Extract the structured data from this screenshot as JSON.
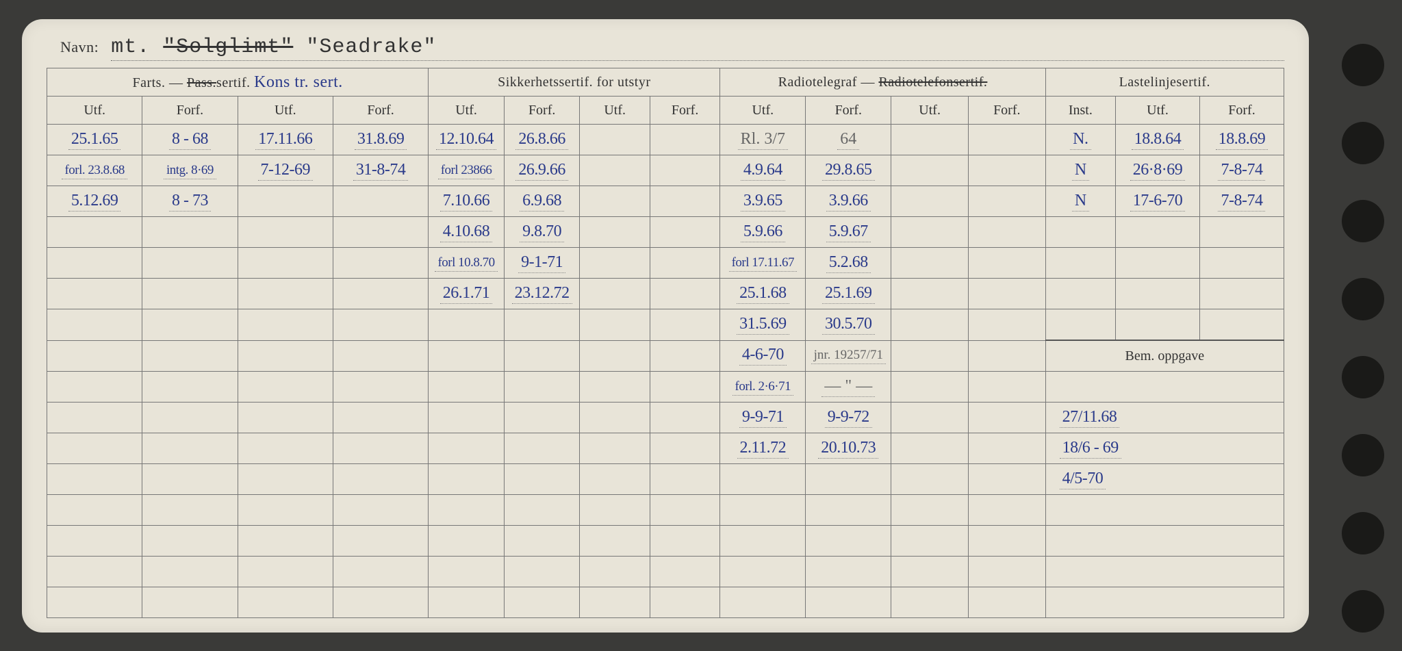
{
  "navn": {
    "label": "Navn:",
    "prefix": "mt.",
    "struck": "\"Solglimt\"",
    "value": "\"Seadrake\""
  },
  "groups": {
    "g1": "Farts. —",
    "g1_struck": "Pass.",
    "g1_suffix": "sertif.",
    "g1_annot": "Kons tr. sert.",
    "g2": "Sikkerhetssertif. for utstyr",
    "g3a": "Radiotelegraf —",
    "g3_struck": "Radiotelefonsertif.",
    "g4": "Lastelinjesertif.",
    "bem": "Bem. oppgave"
  },
  "subheaders": {
    "utf": "Utf.",
    "forf": "Forf.",
    "inst": "Inst."
  },
  "rows": [
    {
      "c1": "25.1.65",
      "c2": "8 - 68",
      "c3": "17.11.66",
      "c4": "31.8.69",
      "c5": "12.10.64",
      "c6": "26.8.66",
      "c7": "",
      "c8": "",
      "c9": "Rl. 3/7",
      "c10": "64",
      "c11": "",
      "c12": "",
      "c13": "N.",
      "c14": "18.8.64",
      "c15": "18.8.69",
      "pencil9": true,
      "pencil10": true
    },
    {
      "c1": "forl. 23.8.68",
      "c2": "intg. 8·69",
      "c3": "7-12-69",
      "c4": "31-8-74",
      "c5": "forl 23866",
      "c6": "26.9.66",
      "c7": "",
      "c8": "",
      "c9": "4.9.64",
      "c10": "29.8.65",
      "c11": "",
      "c12": "",
      "c13": "N",
      "c14": "26·8·69",
      "c15": "7-8-74"
    },
    {
      "c1": "5.12.69",
      "c2": "8 - 73",
      "c3": "",
      "c4": "",
      "c5": "7.10.66",
      "c6": "6.9.68",
      "c7": "",
      "c8": "",
      "c9": "3.9.65",
      "c10": "3.9.66",
      "c11": "",
      "c12": "",
      "c13": "N",
      "c14": "17-6-70",
      "c15": "7-8-74"
    },
    {
      "c1": "",
      "c2": "",
      "c3": "",
      "c4": "",
      "c5": "4.10.68",
      "c6": "9.8.70",
      "c7": "",
      "c8": "",
      "c9": "5.9.66",
      "c10": "5.9.67",
      "c11": "",
      "c12": "",
      "c13": "",
      "c14": "",
      "c15": ""
    },
    {
      "c1": "",
      "c2": "",
      "c3": "",
      "c4": "",
      "c5": "forl 10.8.70",
      "c6": "9-1-71",
      "c7": "",
      "c8": "",
      "c9": "forl 17.11.67",
      "c10": "5.2.68",
      "c11": "",
      "c12": "",
      "c13": "",
      "c14": "",
      "c15": ""
    },
    {
      "c1": "",
      "c2": "",
      "c3": "",
      "c4": "",
      "c5": "26.1.71",
      "c6": "23.12.72",
      "c7": "",
      "c8": "",
      "c9": "25.1.68",
      "c10": "25.1.69",
      "c11": "",
      "c12": "",
      "c13": "",
      "c14": "",
      "c15": ""
    },
    {
      "c1": "",
      "c2": "",
      "c3": "",
      "c4": "",
      "c5": "",
      "c6": "",
      "c7": "",
      "c8": "",
      "c9": "31.5.69",
      "c10": "30.5.70",
      "c11": "",
      "c12": "",
      "c13": "",
      "c14": "",
      "c15": ""
    },
    {
      "c1": "",
      "c2": "",
      "c3": "",
      "c4": "",
      "c5": "",
      "c6": "",
      "c7": "",
      "c8": "",
      "c9": "4-6-70",
      "c10": "jnr. 19257/71",
      "c11": "",
      "c12": "",
      "c13": "",
      "c14": "",
      "c15": "",
      "pencil10": true,
      "bem_start": true
    },
    {
      "c1": "",
      "c2": "",
      "c3": "",
      "c4": "",
      "c5": "",
      "c6": "",
      "c7": "",
      "c8": "",
      "c9": "forl. 2·6·71",
      "c10": "— \" —",
      "c11": "",
      "c12": "",
      "c13": "",
      "c14": "",
      "c15": "",
      "pencil10": true
    },
    {
      "c1": "",
      "c2": "",
      "c3": "",
      "c4": "",
      "c5": "",
      "c6": "",
      "c7": "",
      "c8": "",
      "c9": "9-9-71",
      "c10": "9-9-72",
      "c11": "",
      "c12": "",
      "bem": "27/11.68"
    },
    {
      "c1": "",
      "c2": "",
      "c3": "",
      "c4": "",
      "c5": "",
      "c6": "",
      "c7": "",
      "c8": "",
      "c9": "2.11.72",
      "c10": "20.10.73",
      "c11": "",
      "c12": "",
      "bem": "18/6 - 69"
    },
    {
      "c1": "",
      "c2": "",
      "c3": "",
      "c4": "",
      "c5": "",
      "c6": "",
      "c7": "",
      "c8": "",
      "c9": "",
      "c10": "",
      "c11": "",
      "c12": "",
      "bem": "4/5-70"
    },
    {
      "c1": "",
      "c2": "",
      "c3": "",
      "c4": "",
      "c5": "",
      "c6": "",
      "c7": "",
      "c8": "",
      "c9": "",
      "c10": "",
      "c11": "",
      "c12": "",
      "bem": ""
    },
    {
      "c1": "",
      "c2": "",
      "c3": "",
      "c4": "",
      "c5": "",
      "c6": "",
      "c7": "",
      "c8": "",
      "c9": "",
      "c10": "",
      "c11": "",
      "c12": "",
      "bem": ""
    },
    {
      "c1": "",
      "c2": "",
      "c3": "",
      "c4": "",
      "c5": "",
      "c6": "",
      "c7": "",
      "c8": "",
      "c9": "",
      "c10": "",
      "c11": "",
      "c12": "",
      "bem": ""
    },
    {
      "c1": "",
      "c2": "",
      "c3": "",
      "c4": "",
      "c5": "",
      "c6": "",
      "c7": "",
      "c8": "",
      "c9": "",
      "c10": "",
      "c11": "",
      "c12": "",
      "bem": ""
    }
  ]
}
